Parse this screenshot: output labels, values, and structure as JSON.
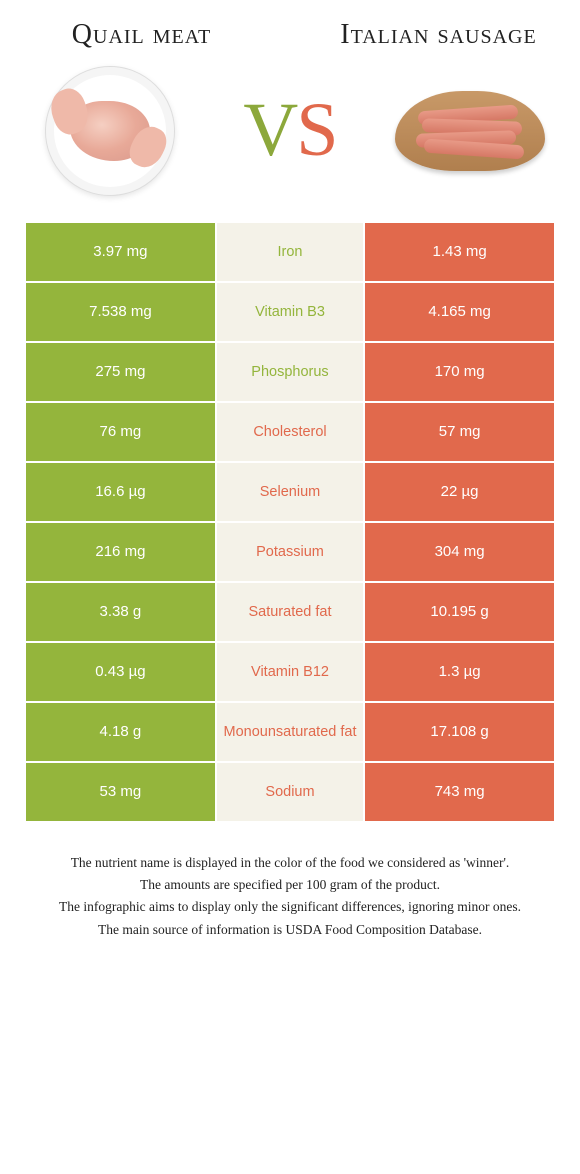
{
  "colors": {
    "green": "#94b53c",
    "orange": "#e1694c",
    "mid_bg": "#f4f2e8",
    "white": "#ffffff"
  },
  "titles": {
    "left": "Quail meat",
    "right": "Italian sausage"
  },
  "vs": {
    "v": "V",
    "s": "S"
  },
  "rows": [
    {
      "left": "3.97 mg",
      "mid": "Iron",
      "right": "1.43 mg",
      "winner": "left"
    },
    {
      "left": "7.538 mg",
      "mid": "Vitamin B3",
      "right": "4.165 mg",
      "winner": "left"
    },
    {
      "left": "275 mg",
      "mid": "Phosphorus",
      "right": "170 mg",
      "winner": "left"
    },
    {
      "left": "76 mg",
      "mid": "Cholesterol",
      "right": "57 mg",
      "winner": "right"
    },
    {
      "left": "16.6 µg",
      "mid": "Selenium",
      "right": "22 µg",
      "winner": "right"
    },
    {
      "left": "216 mg",
      "mid": "Potassium",
      "right": "304 mg",
      "winner": "right"
    },
    {
      "left": "3.38 g",
      "mid": "Saturated fat",
      "right": "10.195 g",
      "winner": "right"
    },
    {
      "left": "0.43 µg",
      "mid": "Vitamin B12",
      "right": "1.3 µg",
      "winner": "right"
    },
    {
      "left": "4.18 g",
      "mid": "Monounsaturated fat",
      "right": "17.108 g",
      "winner": "right"
    },
    {
      "left": "53 mg",
      "mid": "Sodium",
      "right": "743 mg",
      "winner": "right"
    }
  ],
  "footnotes": [
    "The nutrient name is displayed in the color of the food we considered as 'winner'.",
    "The amounts are specified per 100 gram of the product.",
    "The infographic aims to display only the significant differences, ignoring minor ones.",
    "The main source of information is USDA Food Composition Database."
  ]
}
